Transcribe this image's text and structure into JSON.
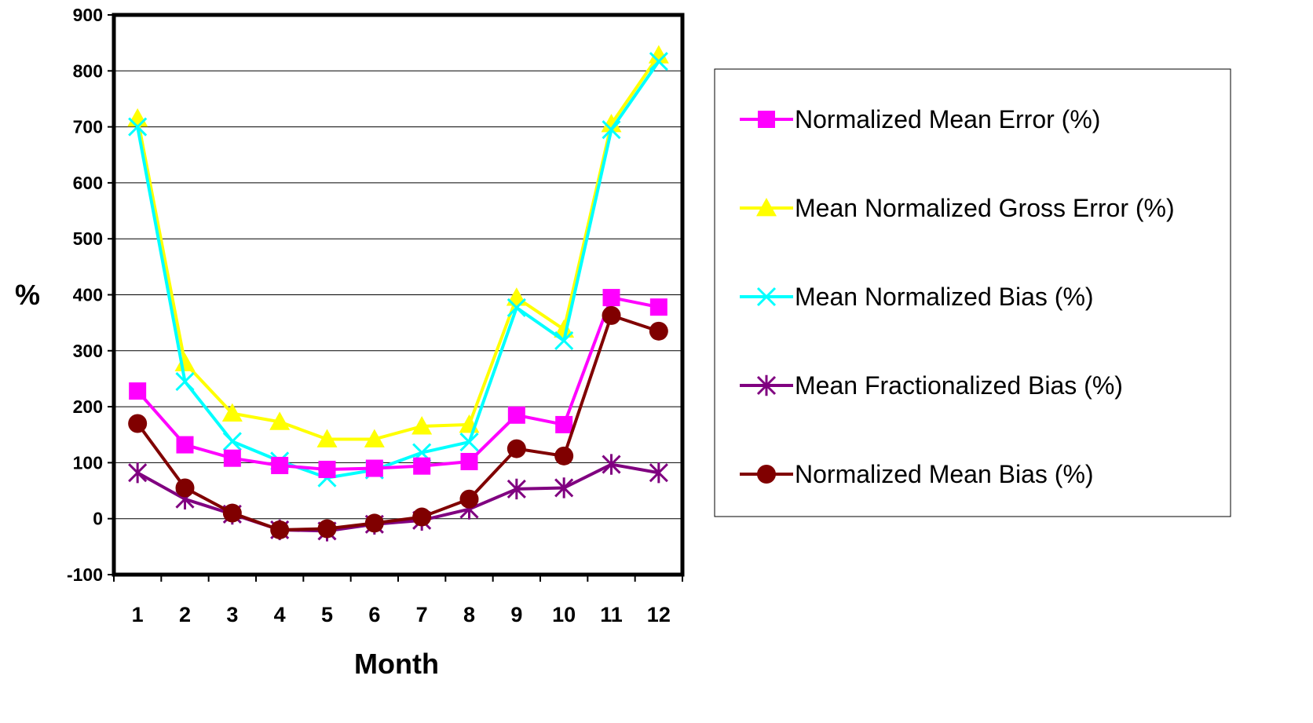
{
  "chart_data": {
    "type": "line",
    "xlabel": "Month",
    "ylabel": "%",
    "categories": [
      "1",
      "2",
      "3",
      "4",
      "5",
      "6",
      "7",
      "8",
      "9",
      "10",
      "11",
      "12"
    ],
    "ylim": [
      -100,
      900
    ],
    "yticks": [
      -100,
      0,
      100,
      200,
      300,
      400,
      500,
      600,
      700,
      800,
      900
    ],
    "grid": true,
    "legend_position": "right",
    "series": [
      {
        "name": "Normalized Mean Error (%)",
        "color": "#ff00ff",
        "marker": "square",
        "values": [
          228,
          132,
          108,
          95,
          88,
          90,
          94,
          102,
          185,
          168,
          395,
          378
        ]
      },
      {
        "name": "Mean Normalized Gross Error (%)",
        "color": "#ffff00",
        "marker": "triangle",
        "values": [
          715,
          278,
          188,
          173,
          142,
          142,
          165,
          168,
          395,
          338,
          705,
          828
        ]
      },
      {
        "name": "Mean Normalized Bias (%)",
        "color": "#00ffff",
        "marker": "x",
        "values": [
          700,
          245,
          138,
          103,
          73,
          87,
          118,
          137,
          377,
          318,
          695,
          817
        ]
      },
      {
        "name": "Mean Fractionalized Bias (%)",
        "color": "#800080",
        "marker": "star",
        "values": [
          82,
          35,
          8,
          -20,
          -22,
          -10,
          -3,
          17,
          53,
          55,
          97,
          82
        ]
      },
      {
        "name": "Normalized Mean Bias (%)",
        "color": "#800000",
        "marker": "circle",
        "values": [
          170,
          55,
          10,
          -20,
          -18,
          -8,
          3,
          35,
          125,
          112,
          363,
          335
        ]
      }
    ]
  }
}
